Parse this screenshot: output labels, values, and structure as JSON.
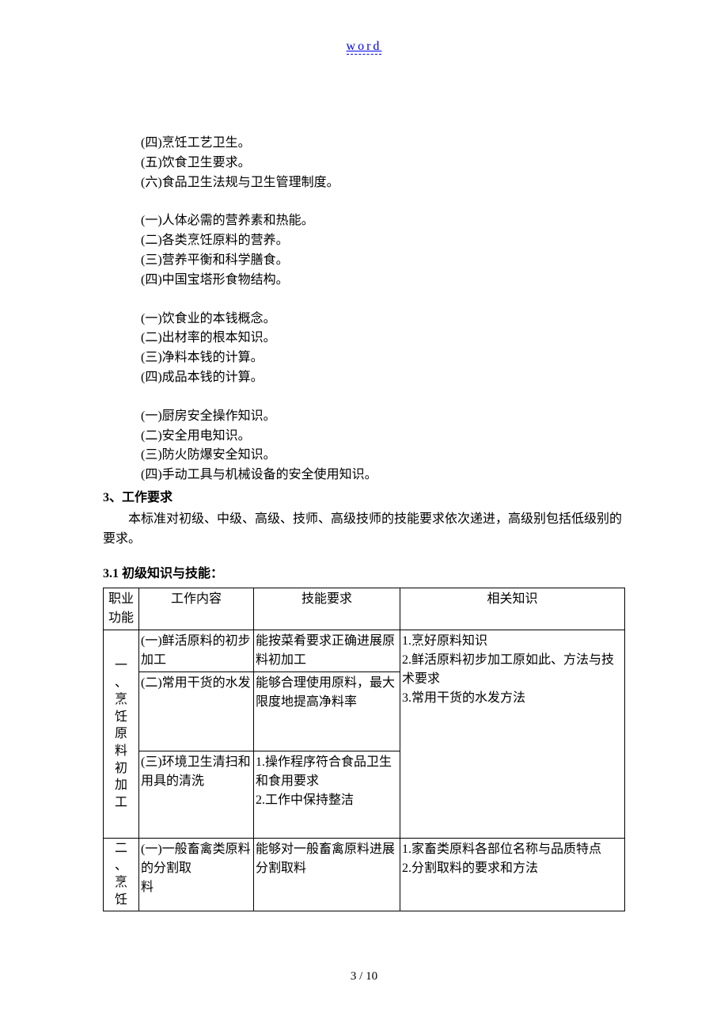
{
  "header_link": "word",
  "blocks": {
    "b1": [
      "(四)烹饪工艺卫生。",
      "(五)饮食卫生要求。",
      "(六)食品卫生法规与卫生管理制度。"
    ],
    "b2": [
      "(一)人体必需的营养素和热能。",
      "(二)各类烹饪原料的营养。",
      "(三)营养平衡和科学膳食。",
      "(四)中国宝塔形食物结构。"
    ],
    "b3": [
      "(一)饮食业的本钱概念。",
      "(二)出材率的根本知识。",
      "(三)净料本钱的计算。",
      "(四)成品本钱的计算。"
    ],
    "b4": [
      "(一)厨房安全操作知识。",
      "(二)安全用电知识。",
      "(三)防火防爆安全知识。",
      "(四)手动工具与机械设备的安全使用知识。"
    ]
  },
  "section3_title": "3、工作要求",
  "section3_body": "本标准对初级、中级、高级、技师、高级技师的技能要求依次递进，高级别包括低级别的要求。",
  "section31_title": "3.1 初级知识与技能：",
  "table_headers": {
    "c1": "职业功能",
    "c2": "工作内容",
    "c3": "技能要求",
    "c4": "相关知识"
  },
  "func1_label": "一、烹饪原料初加工",
  "func2_label": "二、烹饪",
  "rows": {
    "r1": {
      "work": "(一)鲜活原料的初步加工",
      "skill": "能按菜肴要求正确进展原料初加工",
      "know_block": "1.烹好原料知识\n2.鲜活原料初步加工原如此、方法与技术要求\n3.常用干货的水发方法"
    },
    "r2": {
      "work": "(二)常用干货的水发",
      "skill": "能够合理使用原料，最大限度地提高净料率"
    },
    "r3": {
      "work": "(三)环境卫生清扫和用具的清洗",
      "skill": "1.操作程序符合食品卫生和食用要求\n2.工作中保持整洁"
    },
    "r4": {
      "work": "(一)一般畜禽类原料的分割取\n料",
      "skill": "能够对一般畜禽原料进展分割取料",
      "know": "1.家畜类原料各部位名称与品质特点\n2.分割取料的要求和方法"
    }
  },
  "page_num": "3 / 10"
}
